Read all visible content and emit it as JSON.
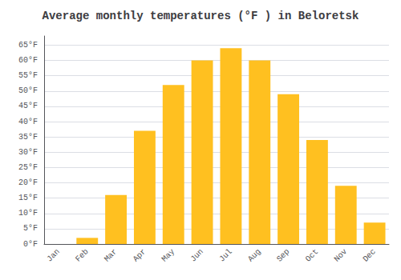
{
  "chart_data": {
    "type": "bar",
    "title": "Average monthly temperatures (°F ) in Beloretsk",
    "categories": [
      "Jan",
      "Feb",
      "Mar",
      "Apr",
      "May",
      "Jun",
      "Jul",
      "Aug",
      "Sep",
      "Oct",
      "Nov",
      "Dec"
    ],
    "values": [
      0,
      2,
      16,
      37,
      52,
      60,
      64,
      60,
      49,
      34,
      19,
      7
    ],
    "color": "#FFC020",
    "ylim": [
      0,
      68
    ],
    "yticks": [
      {
        "value": 0,
        "label": "0°F"
      },
      {
        "value": 5,
        "label": "5°F"
      },
      {
        "value": 10,
        "label": "10°F"
      },
      {
        "value": 15,
        "label": "15°F"
      },
      {
        "value": 20,
        "label": "20°F"
      },
      {
        "value": 25,
        "label": "25°F"
      },
      {
        "value": 30,
        "label": "30°F"
      },
      {
        "value": 35,
        "label": "35°F"
      },
      {
        "value": 40,
        "label": "40°F"
      },
      {
        "value": 45,
        "label": "45°F"
      },
      {
        "value": 50,
        "label": "50°F"
      },
      {
        "value": 55,
        "label": "55°F"
      },
      {
        "value": 60,
        "label": "60°F"
      },
      {
        "value": 65,
        "label": "65°F"
      }
    ],
    "grid": true
  }
}
